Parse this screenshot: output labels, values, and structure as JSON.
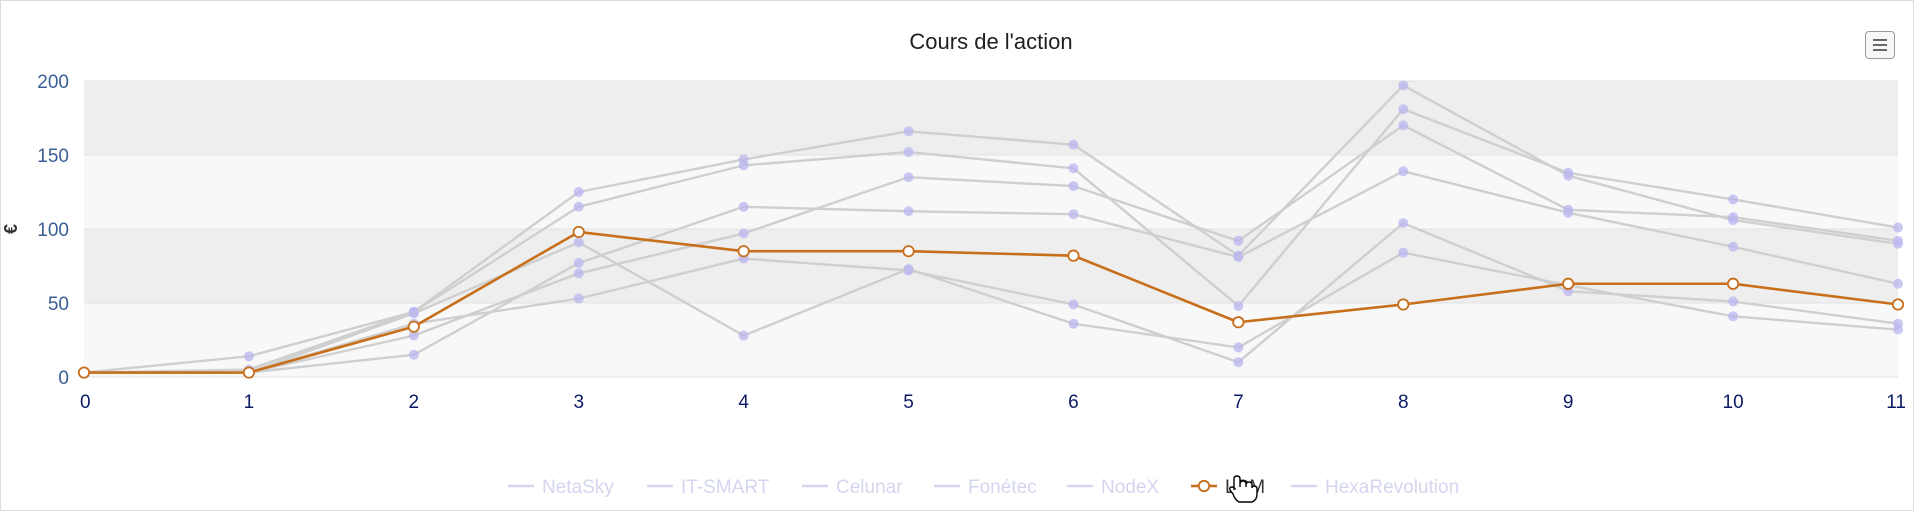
{
  "chart_data": {
    "type": "line",
    "title": "Cours de l'action",
    "ylabel": "€",
    "xlabel": "",
    "x": [
      0,
      1,
      2,
      3,
      4,
      5,
      6,
      7,
      8,
      9,
      10,
      11
    ],
    "ylim": [
      0,
      200
    ],
    "yticks": [
      0,
      50,
      100,
      150,
      200
    ],
    "grid": true,
    "legend_position": "bottom",
    "highlighted_series": "LCM",
    "series": [
      {
        "name": "NetaSky",
        "values": [
          3,
          5,
          44,
          115,
          143,
          152,
          141,
          48,
          181,
          138,
          120,
          101
        ]
      },
      {
        "name": "IT-SMART",
        "values": [
          3,
          14,
          44,
          125,
          147,
          166,
          157,
          82,
          197,
          136,
          106,
          90
        ]
      },
      {
        "name": "Celunar",
        "values": [
          3,
          3,
          36,
          53,
          80,
          72,
          49,
          10,
          104,
          58,
          51,
          36
        ]
      },
      {
        "name": "Fonétec",
        "values": [
          3,
          3,
          28,
          70,
          97,
          135,
          129,
          92,
          170,
          113,
          108,
          92
        ]
      },
      {
        "name": "NodeX",
        "values": [
          3,
          3,
          15,
          77,
          115,
          112,
          110,
          81,
          139,
          111,
          88,
          63
        ]
      },
      {
        "name": "LCM",
        "values": [
          3,
          3,
          34,
          98,
          85,
          85,
          82,
          37,
          49,
          63,
          63,
          49
        ]
      },
      {
        "name": "HexaRevolution",
        "values": [
          3,
          3,
          43,
          91,
          28,
          73,
          36,
          20,
          84,
          62,
          41,
          32
        ]
      }
    ],
    "colors": {
      "highlight": "#c76f1b",
      "faded_line": "#cfcfcf",
      "faded_marker": "#b9b7f0",
      "legend_inactive": "#d4d6ef",
      "band_dark": "#eeeeee",
      "band_light": "#f8f8f8"
    }
  },
  "ui": {
    "menu_icon": "hamburger-menu-icon",
    "cursor_icon": "hand-pointer-icon"
  }
}
